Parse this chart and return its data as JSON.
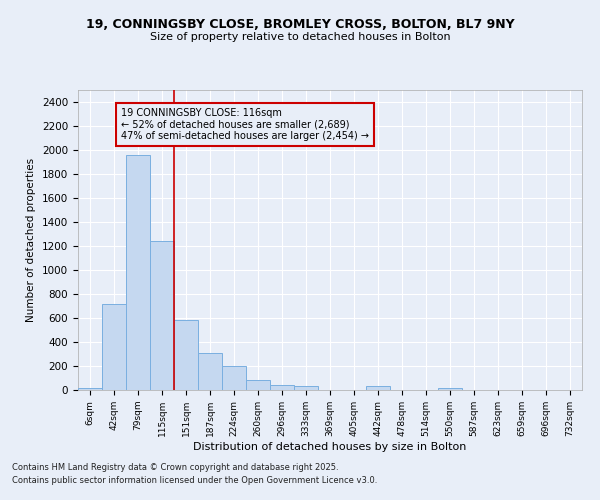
{
  "title1": "19, CONNINGSBY CLOSE, BROMLEY CROSS, BOLTON, BL7 9NY",
  "title2": "Size of property relative to detached houses in Bolton",
  "xlabel": "Distribution of detached houses by size in Bolton",
  "ylabel": "Number of detached properties",
  "categories": [
    "6sqm",
    "42sqm",
    "79sqm",
    "115sqm",
    "151sqm",
    "187sqm",
    "224sqm",
    "260sqm",
    "296sqm",
    "333sqm",
    "369sqm",
    "405sqm",
    "442sqm",
    "478sqm",
    "514sqm",
    "550sqm",
    "587sqm",
    "623sqm",
    "659sqm",
    "696sqm",
    "732sqm"
  ],
  "values": [
    20,
    720,
    1960,
    1240,
    580,
    305,
    200,
    80,
    45,
    30,
    0,
    0,
    35,
    0,
    0,
    15,
    0,
    0,
    0,
    0,
    0
  ],
  "bar_color": "#c5d8f0",
  "bar_edge_color": "#7aafe0",
  "bg_color": "#e8eef8",
  "grid_color": "#ffffff",
  "vline_x": 3.0,
  "vline_color": "#cc0000",
  "annotation_text": "19 CONNINGSBY CLOSE: 116sqm\n← 52% of detached houses are smaller (2,689)\n47% of semi-detached houses are larger (2,454) →",
  "annotation_box_color": "#cc0000",
  "footnote1": "Contains HM Land Registry data © Crown copyright and database right 2025.",
  "footnote2": "Contains public sector information licensed under the Open Government Licence v3.0.",
  "ylim": [
    0,
    2500
  ],
  "yticks": [
    0,
    200,
    400,
    600,
    800,
    1000,
    1200,
    1400,
    1600,
    1800,
    2000,
    2200,
    2400
  ]
}
